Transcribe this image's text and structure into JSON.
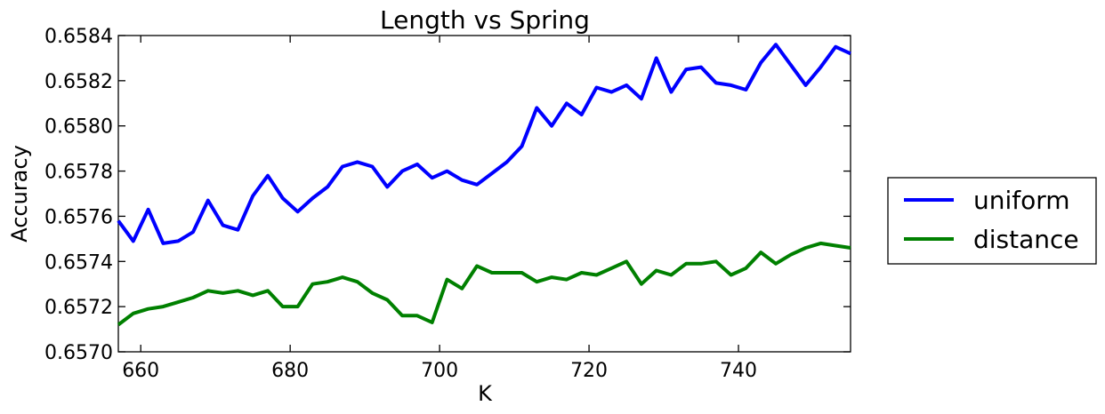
{
  "chart_data": {
    "type": "line",
    "title": "Length vs Spring",
    "xlabel": "K",
    "ylabel": "Accuracy",
    "xlim": [
      657,
      755
    ],
    "ylim": [
      0.657,
      0.6584
    ],
    "xticks": [
      660,
      680,
      700,
      720,
      740
    ],
    "xtick_labels": [
      "660",
      "680",
      "700",
      "720",
      "740"
    ],
    "yticks": [
      0.657,
      0.6572,
      0.6574,
      0.6576,
      0.6578,
      0.658,
      0.6582,
      0.6584
    ],
    "ytick_labels": [
      "0.6570",
      "0.6572",
      "0.6574",
      "0.6576",
      "0.6578",
      "0.6580",
      "0.6582",
      "0.6584"
    ],
    "grid": false,
    "legend_position": "outside-right",
    "x": [
      657,
      659,
      661,
      663,
      665,
      667,
      669,
      671,
      673,
      675,
      677,
      679,
      681,
      683,
      685,
      687,
      689,
      691,
      693,
      695,
      697,
      699,
      701,
      703,
      705,
      707,
      709,
      711,
      713,
      715,
      717,
      719,
      721,
      723,
      725,
      727,
      729,
      731,
      733,
      735,
      737,
      739,
      741,
      743,
      745,
      747,
      749,
      751,
      753,
      755
    ],
    "series": [
      {
        "name": "uniform",
        "color": "#0000ff",
        "values": [
          0.65758,
          0.65749,
          0.65763,
          0.65748,
          0.65749,
          0.65753,
          0.65767,
          0.65756,
          0.65754,
          0.65769,
          0.65778,
          0.65768,
          0.65762,
          0.65768,
          0.65773,
          0.65782,
          0.65784,
          0.65782,
          0.65773,
          0.6578,
          0.65783,
          0.65777,
          0.6578,
          0.65776,
          0.65774,
          0.65779,
          0.65784,
          0.65791,
          0.65808,
          0.658,
          0.6581,
          0.65805,
          0.65817,
          0.65815,
          0.65818,
          0.65812,
          0.6583,
          0.65815,
          0.65825,
          0.65826,
          0.65819,
          0.65818,
          0.65816,
          0.65828,
          0.65836,
          0.65827,
          0.65818,
          0.65826,
          0.65835,
          0.65832
        ]
      },
      {
        "name": "distance",
        "color": "#008000",
        "values": [
          0.65712,
          0.65717,
          0.65719,
          0.6572,
          0.65722,
          0.65724,
          0.65727,
          0.65726,
          0.65727,
          0.65725,
          0.65727,
          0.6572,
          0.6572,
          0.6573,
          0.65731,
          0.65733,
          0.65731,
          0.65726,
          0.65723,
          0.65716,
          0.65716,
          0.65713,
          0.65732,
          0.65728,
          0.65738,
          0.65735,
          0.65735,
          0.65735,
          0.65731,
          0.65733,
          0.65732,
          0.65735,
          0.65734,
          0.65737,
          0.6574,
          0.6573,
          0.65736,
          0.65734,
          0.65739,
          0.65739,
          0.6574,
          0.65734,
          0.65737,
          0.65744,
          0.65739,
          0.65743,
          0.65746,
          0.65748,
          0.65747,
          0.65746
        ]
      }
    ]
  }
}
